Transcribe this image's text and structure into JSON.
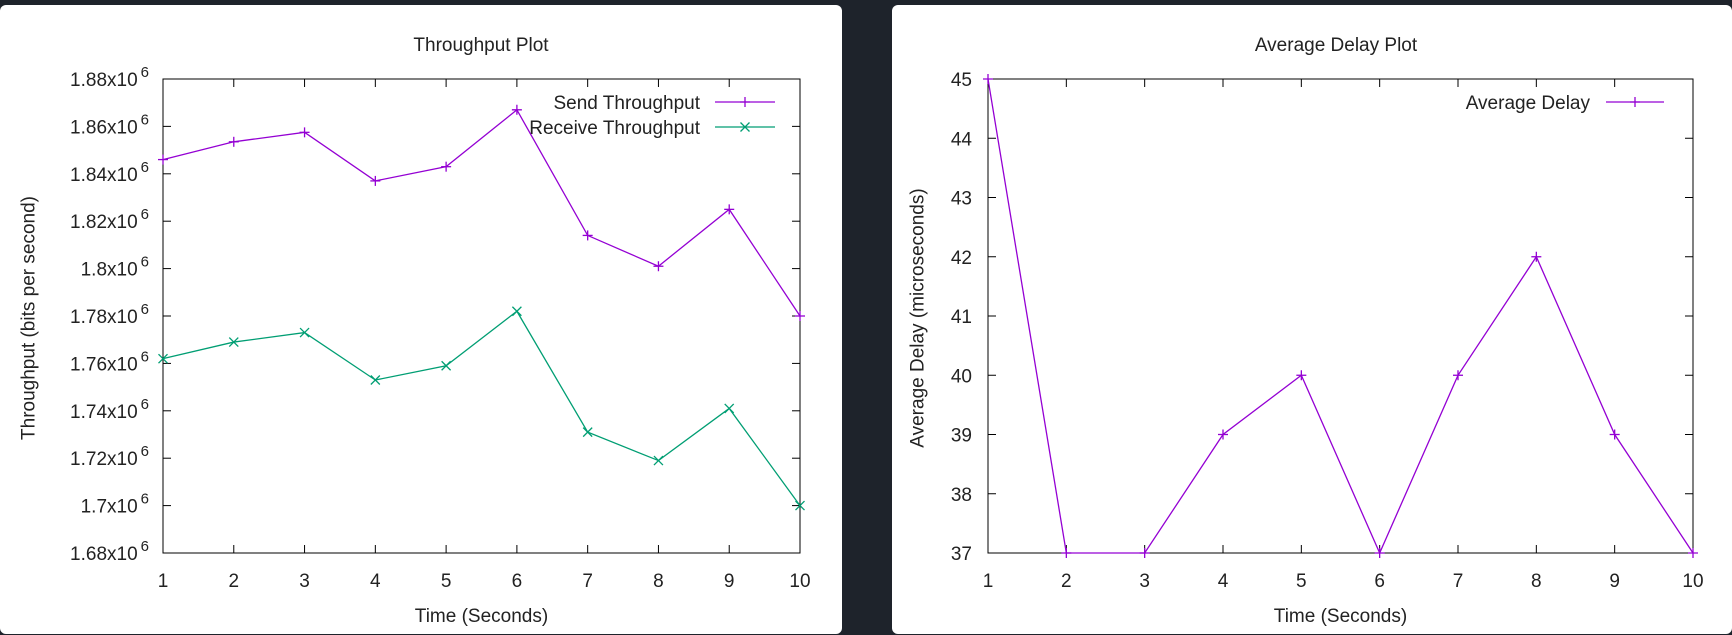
{
  "chart_data": [
    {
      "type": "line",
      "title": "Throughput Plot",
      "xlabel": "Time (Seconds)",
      "ylabel": "Throughput (bits per second)",
      "x": [
        1,
        2,
        3,
        4,
        5,
        6,
        7,
        8,
        9,
        10
      ],
      "xlim": [
        1,
        10
      ],
      "ylim": [
        1680000,
        1880000
      ],
      "x_ticks": [
        "1",
        "2",
        "3",
        "4",
        "5",
        "6",
        "7",
        "8",
        "9",
        "10"
      ],
      "y_ticks": [
        {
          "mantissa": "1.68x10",
          "exp": "6"
        },
        {
          "mantissa": "1.7x10",
          "exp": "6"
        },
        {
          "mantissa": "1.72x10",
          "exp": "6"
        },
        {
          "mantissa": "1.74x10",
          "exp": "6"
        },
        {
          "mantissa": "1.76x10",
          "exp": "6"
        },
        {
          "mantissa": "1.78x10",
          "exp": "6"
        },
        {
          "mantissa": "1.8x10",
          "exp": "6"
        },
        {
          "mantissa": "1.82x10",
          "exp": "6"
        },
        {
          "mantissa": "1.84x10",
          "exp": "6"
        },
        {
          "mantissa": "1.86x10",
          "exp": "6"
        },
        {
          "mantissa": "1.88x10",
          "exp": "6"
        }
      ],
      "legend_position": "top-right",
      "grid": false,
      "series": [
        {
          "name": "Send Throughput",
          "marker": "plus",
          "color": "#9400d3",
          "values": [
            1846000,
            1853500,
            1857500,
            1837000,
            1843000,
            1867000,
            1814000,
            1801000,
            1825000,
            1780000
          ]
        },
        {
          "name": "Receive Throughput",
          "marker": "cross",
          "color": "#009e73",
          "values": [
            1762000,
            1769000,
            1773000,
            1753000,
            1759000,
            1782000,
            1731000,
            1719000,
            1741000,
            1700000
          ]
        }
      ]
    },
    {
      "type": "line",
      "title": "Average Delay Plot",
      "xlabel": "Time (Seconds)",
      "ylabel": "Average Delay (microseconds)",
      "x": [
        1,
        2,
        3,
        4,
        5,
        6,
        7,
        8,
        9,
        10
      ],
      "xlim": [
        1,
        10
      ],
      "ylim": [
        37,
        45
      ],
      "x_ticks": [
        "1",
        "2",
        "3",
        "4",
        "5",
        "6",
        "7",
        "8",
        "9",
        "10"
      ],
      "y_ticks": [
        {
          "mantissa": "37",
          "exp": ""
        },
        {
          "mantissa": "38",
          "exp": ""
        },
        {
          "mantissa": "39",
          "exp": ""
        },
        {
          "mantissa": "40",
          "exp": ""
        },
        {
          "mantissa": "41",
          "exp": ""
        },
        {
          "mantissa": "42",
          "exp": ""
        },
        {
          "mantissa": "43",
          "exp": ""
        },
        {
          "mantissa": "44",
          "exp": ""
        },
        {
          "mantissa": "45",
          "exp": ""
        }
      ],
      "legend_position": "top-right",
      "grid": false,
      "series": [
        {
          "name": "Average Delay",
          "marker": "plus",
          "color": "#9400d3",
          "values": [
            45,
            37,
            37,
            39,
            40,
            37,
            40,
            42,
            39,
            37
          ]
        }
      ]
    }
  ]
}
